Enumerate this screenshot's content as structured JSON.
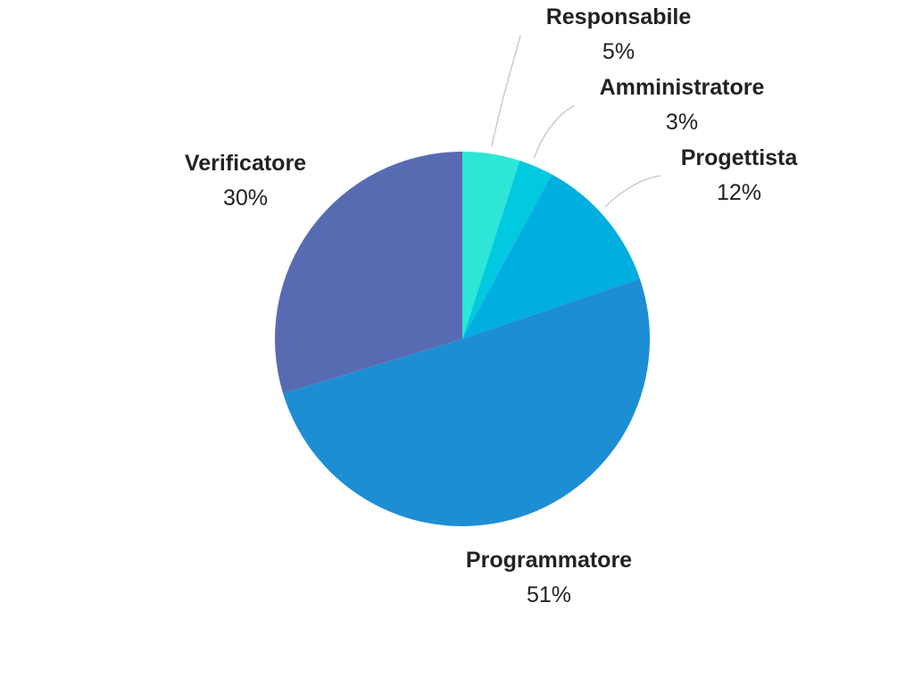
{
  "chart_data": {
    "type": "pie",
    "title": "",
    "slices": [
      {
        "label": "Responsabile",
        "value": 5,
        "value_label": "5%",
        "color": "#2ee6d6"
      },
      {
        "label": "Amministratore",
        "value": 3,
        "value_label": "3%",
        "color": "#00c9e0"
      },
      {
        "label": "Progettista",
        "value": 12,
        "value_label": "12%",
        "color": "#00aee0"
      },
      {
        "label": "Programmatore",
        "value": 51,
        "value_label": "51%",
        "color": "#1e8ed4"
      },
      {
        "label": "Verificatore",
        "value": 30,
        "value_label": "30%",
        "color": "#586bb2"
      }
    ],
    "start": "top",
    "direction": "clockwise",
    "legend": "none",
    "leader_line_color": "#cccccc"
  }
}
